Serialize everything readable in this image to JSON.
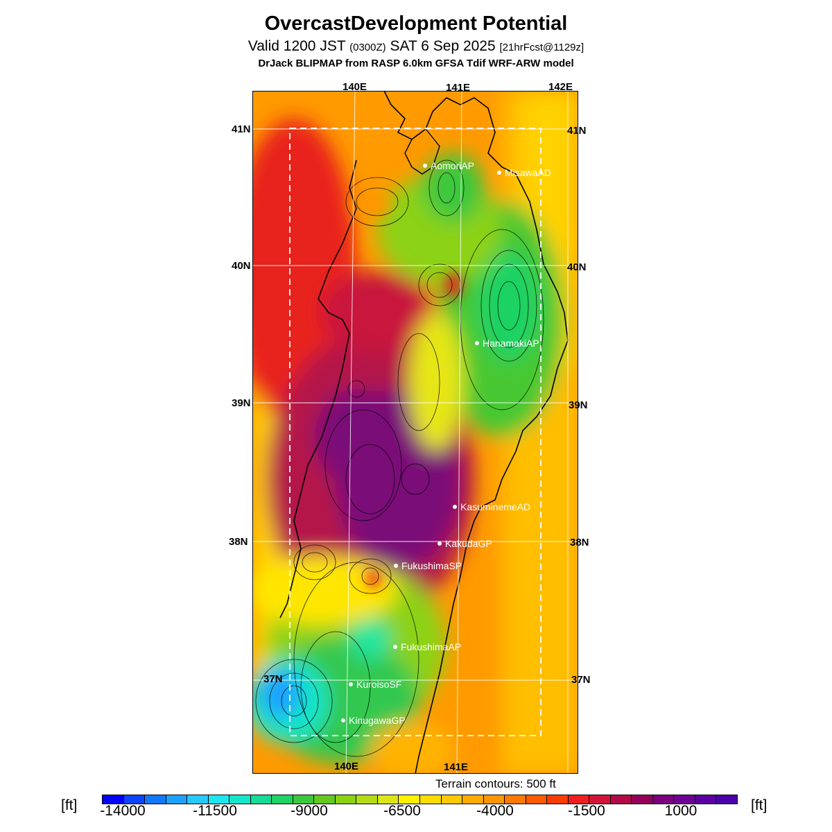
{
  "title": "OvercastDevelopment Potential",
  "subtitle": {
    "valid_prefix": "Valid 1200 JST",
    "utc": "(0300Z)",
    "date": "SAT 6 Sep 2025",
    "forecast": "[21hrFcst@1129z]"
  },
  "model_line": "DrJack BLIPMAP from RASP 6.0km GFSA Tdif WRF-ARW model",
  "map": {
    "lat_labels": [
      "41N",
      "40N",
      "39N",
      "38N",
      "37N"
    ],
    "lon_labels_top": [
      "140E",
      "141E",
      "142E"
    ],
    "lon_labels_bottom": [
      "140E",
      "141E"
    ],
    "stations": [
      {
        "name": "AomoriAP"
      },
      {
        "name": "MisawaAD"
      },
      {
        "name": "HanamakiAP"
      },
      {
        "name": "KasuminemeAD"
      },
      {
        "name": "KakudaGP"
      },
      {
        "name": "FukushimaSP"
      },
      {
        "name": "FukushimaAP"
      },
      {
        "name": "KuroisoSF"
      },
      {
        "name": "KinugawaGP"
      }
    ]
  },
  "terrain_note": "Terrain contours: 500 ft",
  "colorbar": {
    "unit": "[ft]",
    "tick_labels": [
      "-14000",
      "-11500",
      "-9000",
      "-6500",
      "-4000",
      "-1500",
      "1000"
    ],
    "colors": [
      "#0000ff",
      "#0a46ff",
      "#1478ff",
      "#1ea0ff",
      "#28c8ff",
      "#1ee6f0",
      "#14e6c8",
      "#14dc96",
      "#1ed264",
      "#3cc83c",
      "#64c81e",
      "#8cd214",
      "#b4dc14",
      "#dce614",
      "#fff000",
      "#ffdc00",
      "#ffc800",
      "#ffaa00",
      "#ff9600",
      "#ff7800",
      "#ff5a00",
      "#ff3c00",
      "#f01e1e",
      "#d2143c",
      "#b40a46",
      "#96005a",
      "#7d0080",
      "#6e0096",
      "#5a00a0",
      "#4b00aa"
    ]
  }
}
